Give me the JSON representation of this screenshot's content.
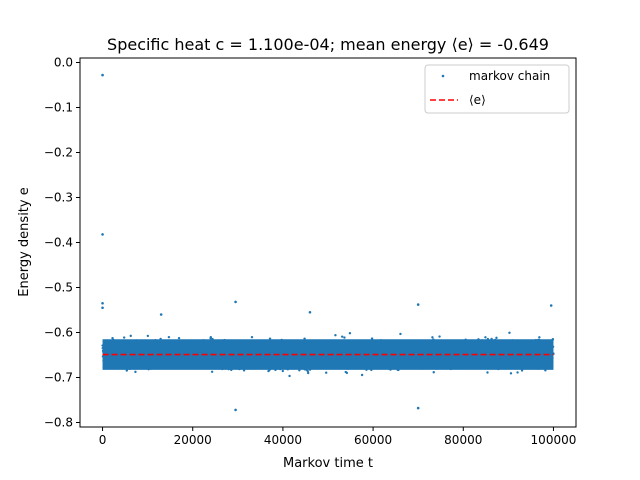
{
  "chart_data": {
    "type": "scatter",
    "title": "Specific heat c = 1.100e-04; mean energy ⟨e⟩ = -0.649",
    "xlabel": "Markov time t",
    "ylabel": "Energy density e",
    "xlim": [
      -5000,
      105000
    ],
    "ylim": [
      -0.81,
      0.01
    ],
    "xticks": [
      0,
      20000,
      40000,
      60000,
      80000,
      100000
    ],
    "xtick_labels": [
      "0",
      "20000",
      "40000",
      "60000",
      "80000",
      "100000"
    ],
    "yticks": [
      0.0,
      -0.1,
      -0.2,
      -0.3,
      -0.4,
      -0.5,
      -0.6,
      -0.7,
      -0.8
    ],
    "ytick_labels": [
      "0.0",
      "−0.1",
      "−0.2",
      "−0.3",
      "−0.4",
      "−0.5",
      "−0.6",
      "−0.7",
      "−0.8"
    ],
    "grid": false,
    "legend_position": "top-right",
    "series": [
      {
        "name": "markov chain",
        "kind": "points",
        "color": "#1f77b4",
        "n_steps": 100000,
        "band_mean": -0.649,
        "band_min": -0.75,
        "band_max": -0.58,
        "outliers": [
          {
            "x": 0,
            "y": -0.028
          },
          {
            "x": 0,
            "y": -0.382
          },
          {
            "x": 0,
            "y": -0.535
          },
          {
            "x": 0,
            "y": -0.545
          },
          {
            "x": 29500,
            "y": -0.532
          },
          {
            "x": 70000,
            "y": -0.538
          },
          {
            "x": 99500,
            "y": -0.54
          },
          {
            "x": 13000,
            "y": -0.56
          },
          {
            "x": 46000,
            "y": -0.555
          },
          {
            "x": 29500,
            "y": -0.772
          },
          {
            "x": 70000,
            "y": -0.768
          }
        ]
      },
      {
        "name": "⟨e⟩",
        "kind": "hline",
        "color": "#ff0000",
        "y": -0.649,
        "x_range": [
          0,
          100000
        ]
      }
    ]
  }
}
